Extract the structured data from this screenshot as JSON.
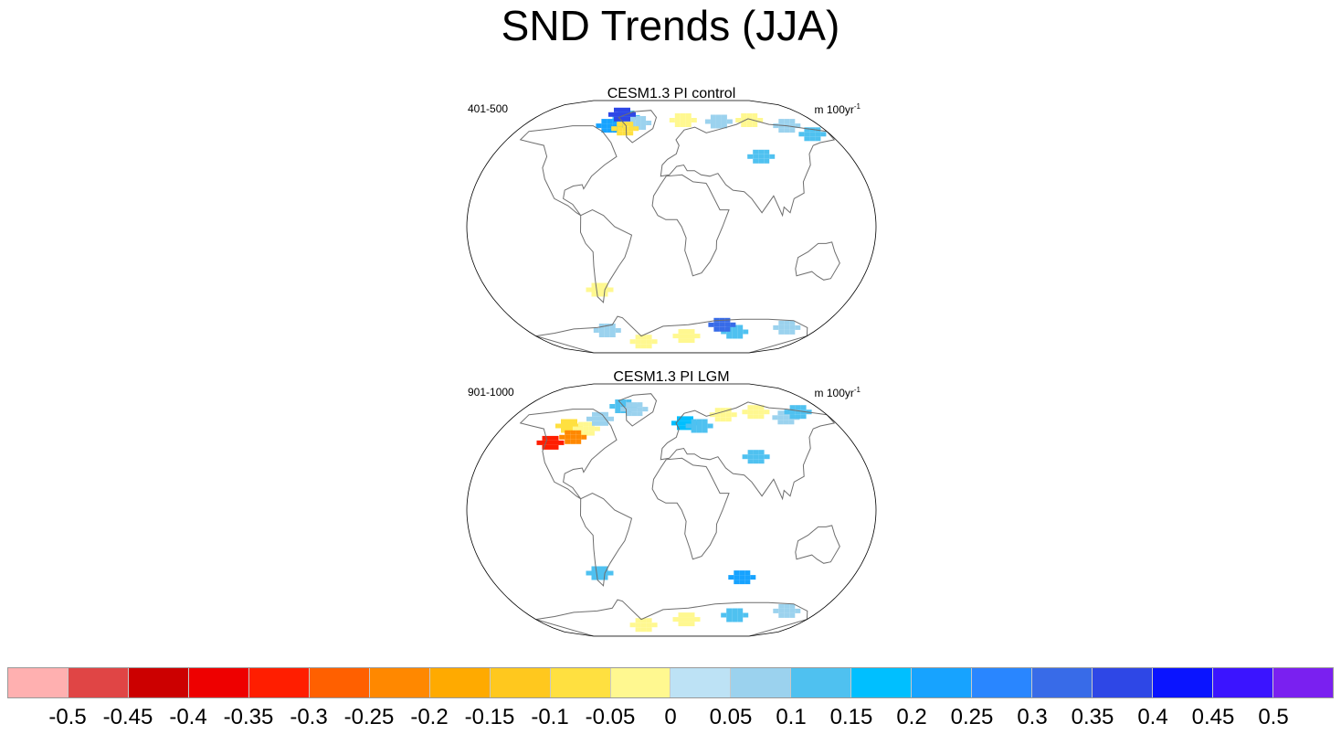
{
  "chart_data": {
    "type": "heatmap",
    "title": "SND Trends (JJA)",
    "panels": [
      {
        "title": "CESM1.3 PI control",
        "left_label": "401-500",
        "units_text": "m 100yr",
        "units_exp": "-1",
        "blobs": [
          {
            "lon": -60,
            "lat": 78,
            "value": 0.1
          },
          {
            "lon": -42,
            "lat": 74,
            "value": 0.05
          },
          {
            "lon": -75,
            "lat": 72,
            "value": 0.2
          },
          {
            "lon": -68,
            "lat": 80,
            "value": 0.35
          },
          {
            "lon": -55,
            "lat": 70,
            "value": -0.1
          },
          {
            "lon": 15,
            "lat": 76,
            "value": -0.05
          },
          {
            "lon": 60,
            "lat": 75,
            "value": 0.05
          },
          {
            "lon": 100,
            "lat": 76,
            "value": -0.05
          },
          {
            "lon": 140,
            "lat": 72,
            "value": 0.05
          },
          {
            "lon": 160,
            "lat": 66,
            "value": 0.1
          },
          {
            "lon": 90,
            "lat": 50,
            "value": 0.1
          },
          {
            "lon": -70,
            "lat": -45,
            "value": -0.05
          },
          {
            "lon": -40,
            "lat": -82,
            "value": -0.05
          },
          {
            "lon": 20,
            "lat": -78,
            "value": -0.05
          },
          {
            "lon": 80,
            "lat": -75,
            "value": 0.1
          },
          {
            "lon": 140,
            "lat": -72,
            "value": 0.05
          },
          {
            "lon": 60,
            "lat": -70,
            "value": 0.3
          },
          {
            "lon": -80,
            "lat": -74,
            "value": 0.05
          }
        ]
      },
      {
        "title": "CESM1.3 PI LGM",
        "left_label": "901-1000",
        "units_text": "m 100yr",
        "units_exp": "-1",
        "blobs": [
          {
            "lon": -110,
            "lat": 60,
            "value": -0.1
          },
          {
            "lon": -90,
            "lat": 58,
            "value": -0.05
          },
          {
            "lon": -80,
            "lat": 65,
            "value": 0.05
          },
          {
            "lon": -100,
            "lat": 52,
            "value": -0.25
          },
          {
            "lon": -60,
            "lat": 74,
            "value": 0.1
          },
          {
            "lon": -45,
            "lat": 72,
            "value": 0.05
          },
          {
            "lon": -120,
            "lat": 48,
            "value": -0.35
          },
          {
            "lon": 15,
            "lat": 62,
            "value": 0.15
          },
          {
            "lon": 30,
            "lat": 60,
            "value": 0.1
          },
          {
            "lon": 60,
            "lat": 68,
            "value": -0.05
          },
          {
            "lon": 100,
            "lat": 70,
            "value": -0.05
          },
          {
            "lon": 130,
            "lat": 66,
            "value": 0.05
          },
          {
            "lon": 150,
            "lat": 70,
            "value": 0.1
          },
          {
            "lon": 80,
            "lat": 38,
            "value": 0.1
          },
          {
            "lon": -70,
            "lat": -45,
            "value": 0.1
          },
          {
            "lon": 70,
            "lat": -48,
            "value": 0.2
          },
          {
            "lon": -40,
            "lat": -82,
            "value": -0.05
          },
          {
            "lon": 20,
            "lat": -78,
            "value": -0.05
          },
          {
            "lon": 80,
            "lat": -75,
            "value": 0.1
          },
          {
            "lon": 140,
            "lat": -72,
            "value": 0.05
          }
        ]
      }
    ],
    "colorbar": {
      "colors": [
        "#ffb0b0",
        "#e04545",
        "#cc0000",
        "#ee0000",
        "#ff1e00",
        "#ff6000",
        "#ff8800",
        "#ffaa00",
        "#ffc81e",
        "#ffe040",
        "#fff890",
        "#bde2f5",
        "#9bd2ee",
        "#4fc1f0",
        "#00bfff",
        "#17a3ff",
        "#2986ff",
        "#386be8",
        "#2e47e6",
        "#0a14ff",
        "#3b14ff",
        "#7a20f0"
      ],
      "labels": [
        "-0.5",
        "-0.45",
        "-0.4",
        "-0.35",
        "-0.3",
        "-0.25",
        "-0.2",
        "-0.15",
        "-0.1",
        "-0.05",
        "0",
        "0.05",
        "0.1",
        "0.15",
        "0.2",
        "0.25",
        "0.3",
        "0.35",
        "0.4",
        "0.45",
        "0.5"
      ]
    }
  }
}
